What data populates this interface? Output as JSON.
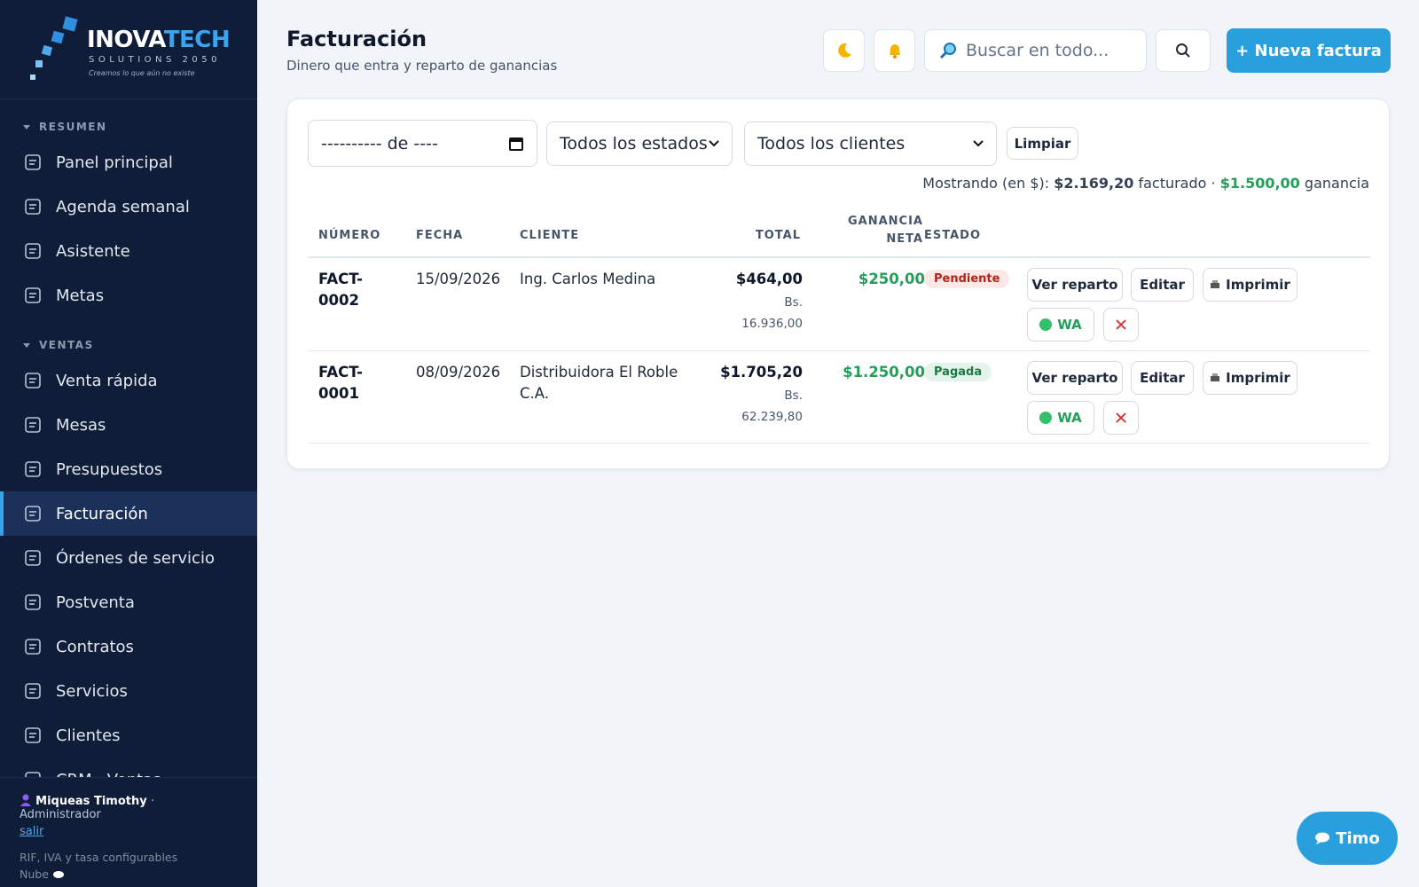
{
  "sidebar": {
    "brand": {
      "name_a": "INOVA",
      "name_b": "TECH",
      "tagline": "SOLUTIONS 2050",
      "slogan": "Creamos lo que aún no existe"
    },
    "sections": [
      {
        "title": "RESUMEN",
        "items": [
          {
            "label": "Panel principal"
          },
          {
            "label": "Agenda semanal"
          },
          {
            "label": "Asistente"
          },
          {
            "label": "Metas"
          }
        ]
      },
      {
        "title": "VENTAS",
        "items": [
          {
            "label": "Venta rápida"
          },
          {
            "label": "Mesas"
          },
          {
            "label": "Presupuestos"
          },
          {
            "label": "Facturación",
            "active": true
          },
          {
            "label": "Órdenes de servicio"
          },
          {
            "label": "Postventa"
          },
          {
            "label": "Contratos"
          },
          {
            "label": "Servicios"
          },
          {
            "label": "Clientes"
          },
          {
            "label": "CRM · Ventas"
          }
        ]
      }
    ],
    "user": {
      "name": "Miqueas Timothy",
      "role": "· Administrador",
      "logout": "salir"
    },
    "note": "RIF, IVA y tasa configurables",
    "cloud": "Nube"
  },
  "header": {
    "title": "Facturación",
    "subtitle": "Dinero que entra y reparto de ganancias",
    "search_placeholder": "Buscar en todo...",
    "new_button": "+ Nueva factura"
  },
  "filters": {
    "date": "---------- de ----",
    "status": "Todos los estados",
    "client": "Todos los clientes",
    "clear": "Limpiar"
  },
  "summary": {
    "prefix": "Mostrando (en $):",
    "billed": "$2.169,20",
    "billed_label": "facturado",
    "sep": "·",
    "profit": "$1.500,00",
    "profit_label": "ganancia"
  },
  "table": {
    "columns": [
      "NÚMERO",
      "FECHA",
      "CLIENTE",
      "TOTAL",
      "GANANCIA NETA",
      "ESTADO"
    ],
    "actions": [
      "Ver reparto",
      "Editar",
      "Imprimir",
      "WA"
    ],
    "rows": [
      {
        "number": "FACT-0002",
        "date": "15/09/2026",
        "client": "Ing. Carlos Medina",
        "total": "$464,00",
        "total_bs": "Bs. 16.936,00",
        "profit": "$250,00",
        "status": "Pendiente",
        "status_color": "#b42318",
        "status_bg": "#fde8e8"
      },
      {
        "number": "FACT-0001",
        "date": "08/09/2026",
        "client": "Distribuidora El Roble C.A.",
        "total": "$1.705,20",
        "total_bs": "Bs. 62.239,80",
        "profit": "$1.250,00",
        "status": "Pagada",
        "status_color": "#1c7a45",
        "status_bg": "#e3f5ea"
      }
    ]
  },
  "chat": {
    "label": "Timo"
  }
}
